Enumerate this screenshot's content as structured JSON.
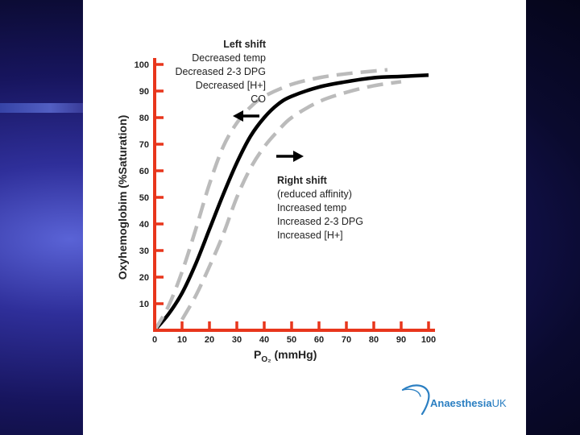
{
  "chart_data": {
    "type": "line",
    "xlabel": "PO₂ (mmHg)",
    "ylabel": "Oxyhemoglobim (%Saturation)",
    "xlim": [
      0,
      100
    ],
    "ylim": [
      0,
      100
    ],
    "xticks": [
      0,
      10,
      20,
      30,
      40,
      50,
      60,
      70,
      80,
      90,
      100
    ],
    "yticks": [
      10,
      20,
      30,
      40,
      50,
      60,
      70,
      80,
      90,
      100
    ],
    "series": [
      {
        "style": "solid",
        "color": "#000000",
        "x": [
          0,
          5,
          10,
          15,
          20,
          25,
          30,
          35,
          40,
          45,
          50,
          60,
          70,
          80,
          90,
          100
        ],
        "y": [
          0,
          6,
          14,
          25,
          38,
          51,
          63,
          73,
          80,
          85,
          88,
          91.5,
          93.5,
          95,
          95.5,
          96
        ]
      },
      {
        "style": "dashed",
        "color": "#bbbbbb",
        "x": [
          0,
          5,
          10,
          15,
          20,
          25,
          30,
          35,
          40,
          50,
          60,
          70,
          80,
          85
        ],
        "y": [
          0,
          9,
          22,
          38,
          55,
          69,
          78,
          84,
          88,
          92.5,
          95,
          96.5,
          97.5,
          98
        ]
      },
      {
        "style": "dashed",
        "color": "#bbbbbb",
        "x": [
          10,
          15,
          20,
          25,
          30,
          35,
          40,
          45,
          50,
          60,
          70,
          80,
          90
        ],
        "y": [
          4,
          13,
          24,
          36,
          50,
          61,
          69,
          75,
          80,
          86,
          89.5,
          92,
          93.5
        ]
      }
    ],
    "annotations": {
      "left_shift": {
        "title": "Left shift",
        "lines": [
          "Decreased temp",
          "Decreased 2-3 DPG",
          "Decreased [H+]",
          "CO"
        ]
      },
      "right_shift": {
        "title": "Right shift",
        "lines": [
          "(reduced affinity)",
          "Increased temp",
          "Increased 2-3 DPG",
          "Increased [H+]"
        ]
      }
    },
    "colors": {
      "axis": "#e8361c",
      "tick_text": "#222222"
    }
  },
  "logo": {
    "name": "Anaesthesia",
    "suffix": "UK"
  }
}
